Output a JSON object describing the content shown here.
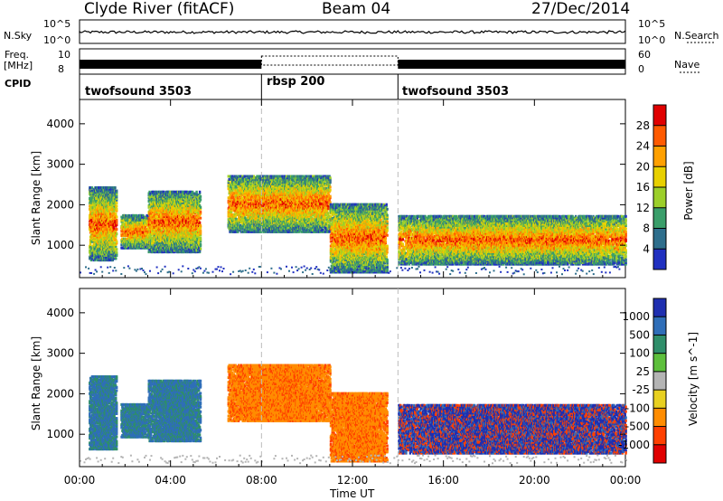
{
  "header": {
    "station": "Clyde River (fitACF)",
    "beam": "Beam 04",
    "date": "27/Dec/2014"
  },
  "status_panels": {
    "nsky_label": "N.Sky",
    "nsearch_label": "N.Search",
    "freq_label": "Freq.",
    "freq_unit": "[MHz]",
    "nave_label": "Nave",
    "cpid_label": "CPID",
    "noise_ticks": [
      "10^5",
      "10^0"
    ],
    "noise_ticks_right": [
      "10^5",
      "10^0"
    ],
    "freq_ticks": [
      "10",
      "8"
    ],
    "nave_ticks": [
      "60",
      "0"
    ],
    "cpid_segments": [
      {
        "name": "twofsound 3503",
        "start_hour": 0
      },
      {
        "name": "rbsp 200",
        "start_hour": 8
      },
      {
        "name": "twofsound 3503",
        "start_hour": 14
      }
    ]
  },
  "chart_data": [
    {
      "type": "heatmap",
      "panel": "power",
      "ylabel": "Slant Range [km]",
      "xlabel": "Time UT",
      "x_range_hours": [
        0,
        24
      ],
      "ylim": [
        200,
        4600
      ],
      "yticks": [
        1000,
        2000,
        3000,
        4000
      ],
      "xticks": [
        "00:00",
        "04:00",
        "08:00",
        "12:00",
        "16:00",
        "20:00",
        "00:00"
      ],
      "colorbar": {
        "label": "Power [dB]",
        "ticks": [
          "28",
          "24",
          "20",
          "16",
          "12",
          "8",
          "4"
        ],
        "colors": [
          "#e00000",
          "#ff5a00",
          "#ffa000",
          "#e8d000",
          "#9ccf2a",
          "#3a9e6a",
          "#2e6e8c",
          "#2030c0"
        ]
      },
      "scatter_regions": [
        {
          "t0": 0.4,
          "t1": 1.6,
          "r0": 600,
          "r1": 2400
        },
        {
          "t0": 1.8,
          "t1": 3.0,
          "r0": 900,
          "r1": 1700
        },
        {
          "t0": 3.0,
          "t1": 5.3,
          "r0": 800,
          "r1": 2300
        },
        {
          "t0": 6.5,
          "t1": 11.0,
          "r0": 1300,
          "r1": 2700
        },
        {
          "t0": 11.0,
          "t1": 13.5,
          "r0": 300,
          "r1": 2000
        },
        {
          "t0": 14.0,
          "t1": 24.0,
          "r0": 500,
          "r1": 1700
        }
      ]
    },
    {
      "type": "heatmap",
      "panel": "velocity",
      "ylabel": "Slant Range [km]",
      "xlabel": "Time UT",
      "x_range_hours": [
        0,
        24
      ],
      "ylim": [
        200,
        4600
      ],
      "yticks": [
        1000,
        2000,
        3000,
        4000
      ],
      "xticks": [
        "00:00",
        "04:00",
        "08:00",
        "12:00",
        "16:00",
        "20:00",
        "00:00"
      ],
      "colorbar": {
        "label": "Velocity [m s^-1]",
        "ticks": [
          "1000",
          "500",
          "100",
          "25",
          "-25",
          "-100",
          "-500",
          "-1000"
        ],
        "colors": [
          "#1f2fb0",
          "#2f6eb8",
          "#2f8e6a",
          "#5dbf3c",
          "#b4b4b4",
          "#e8d020",
          "#ff8c00",
          "#ff4000",
          "#e00000"
        ]
      }
    }
  ]
}
